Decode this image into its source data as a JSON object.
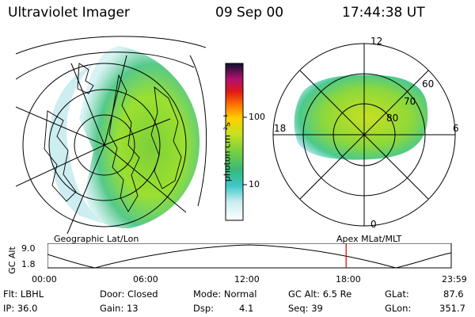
{
  "header": {
    "instrument": "Ultraviolet Imager",
    "date": "09 Sep 00",
    "time": "17:44:38 UT"
  },
  "colorbar": {
    "unit_label": "photon cm⁻²s⁻¹",
    "ticks": [
      "100",
      "10"
    ]
  },
  "left_panel": {
    "caption": "Geographic Lat/Lon"
  },
  "right_panel": {
    "caption": "Apex MLat/MLT",
    "mlt_labels": {
      "top": "12",
      "left": "18",
      "right": "6",
      "bottom": "0"
    },
    "lat_labels": [
      "60",
      "70",
      "80"
    ]
  },
  "altitude_plot": {
    "ylabel": "GC Alt",
    "yticks": [
      "9.0",
      "1.8"
    ],
    "xticks": [
      "00:00",
      "06:00",
      "12:00",
      "18:00",
      "23:59"
    ],
    "current_time_hours": 17.74
  },
  "info": {
    "filter": "Flt: LBHL",
    "ip": "IP: 36.0",
    "door": "Door: Closed",
    "gain": "Gain: 13",
    "mode": "Mode: Normal",
    "dsp_label": "Dsp:",
    "dsp_value": "4.1",
    "gc_alt": "GC Alt: 6.5 Re",
    "seq": "Seq: 39",
    "glat_label": "GLat:",
    "glat_value": "87.6",
    "glon_label": "GLon:",
    "glon_value": "351.7"
  }
}
